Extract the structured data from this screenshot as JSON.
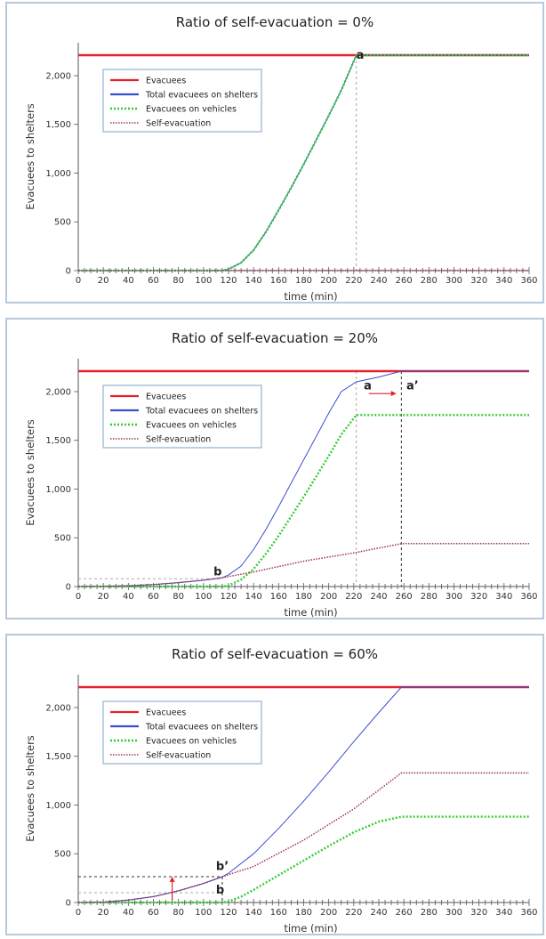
{
  "chart_data": [
    {
      "type": "line",
      "title": "Ratio of self-evacuation = 0%",
      "xlabel": "time (min)",
      "ylabel": "Evacuees to shelters",
      "xlim": [
        0,
        360
      ],
      "ylim": [
        0,
        2200
      ],
      "xticks": [
        "0",
        "20",
        "40",
        "60",
        "80",
        "100",
        "120",
        "140",
        "160",
        "180",
        "200",
        "220",
        "240",
        "260",
        "280",
        "300",
        "320",
        "340",
        "360"
      ],
      "yticks": [
        "0",
        "500",
        "1,000",
        "1,500",
        "2,000"
      ],
      "legend": "top-left",
      "grid": false,
      "series": [
        {
          "name": "Evacuees",
          "color": "#e8202a",
          "style": "solid",
          "x": [
            0,
            360
          ],
          "y": [
            2210,
            2210
          ]
        },
        {
          "name": "Total evacuees on shelters",
          "color": "#3a4fd0",
          "style": "solid",
          "x": [
            0,
            115,
            120,
            130,
            140,
            150,
            160,
            170,
            180,
            190,
            200,
            210,
            222,
            360
          ],
          "y": [
            0,
            0,
            15,
            80,
            210,
            400,
            620,
            850,
            1090,
            1340,
            1590,
            1850,
            2210,
            2210
          ]
        },
        {
          "name": "Evacuees on vehicles",
          "color": "#33cc33",
          "style": "dotted",
          "x": [
            0,
            115,
            120,
            130,
            140,
            150,
            160,
            170,
            180,
            190,
            200,
            210,
            222,
            360
          ],
          "y": [
            0,
            0,
            15,
            80,
            210,
            400,
            620,
            850,
            1090,
            1340,
            1590,
            1850,
            2210,
            2210
          ]
        },
        {
          "name": "Self-evacuation",
          "color": "#9a3355",
          "style": "dotted",
          "x": [
            0,
            360
          ],
          "y": [
            0,
            0
          ]
        }
      ],
      "annotations": [
        {
          "text": "a",
          "x": 222,
          "y": 2210
        }
      ]
    },
    {
      "type": "line",
      "title": "Ratio of self-evacuation = 20%",
      "xlabel": "time (min)",
      "ylabel": "Evacuees to shelters",
      "xlim": [
        0,
        360
      ],
      "ylim": [
        0,
        2200
      ],
      "xticks": [
        "0",
        "20",
        "40",
        "60",
        "80",
        "100",
        "120",
        "140",
        "160",
        "180",
        "200",
        "220",
        "240",
        "260",
        "280",
        "300",
        "320",
        "340",
        "360"
      ],
      "yticks": [
        "0",
        "500",
        "1,000",
        "1,500",
        "2,000"
      ],
      "legend": "top-left",
      "grid": false,
      "series": [
        {
          "name": "Evacuees",
          "color": "#e8202a",
          "style": "solid",
          "x": [
            0,
            360
          ],
          "y": [
            2210,
            2210
          ]
        },
        {
          "name": "Total evacuees on shelters",
          "color": "#3a4fd0",
          "style": "solid",
          "x": [
            0,
            20,
            40,
            60,
            80,
            100,
            115,
            120,
            130,
            140,
            150,
            160,
            170,
            180,
            190,
            200,
            210,
            222,
            240,
            258,
            360
          ],
          "y": [
            0,
            2,
            8,
            20,
            40,
            65,
            90,
            120,
            210,
            380,
            590,
            820,
            1060,
            1300,
            1540,
            1780,
            2000,
            2100,
            2150,
            2210,
            2210
          ]
        },
        {
          "name": "Evacuees on vehicles",
          "color": "#33cc33",
          "style": "dotted",
          "x": [
            0,
            115,
            120,
            130,
            140,
            150,
            160,
            170,
            180,
            190,
            200,
            210,
            222,
            360
          ],
          "y": [
            0,
            0,
            10,
            70,
            180,
            340,
            520,
            720,
            920,
            1130,
            1340,
            1560,
            1760,
            1760
          ]
        },
        {
          "name": "Self-evacuation",
          "color": "#9a3355",
          "style": "dotted",
          "x": [
            0,
            20,
            40,
            60,
            80,
            100,
            115,
            140,
            180,
            222,
            258,
            360
          ],
          "y": [
            0,
            2,
            8,
            20,
            40,
            65,
            90,
            150,
            260,
            350,
            440,
            440
          ]
        }
      ],
      "annotations": [
        {
          "text": "a",
          "x": 228,
          "y": 2060
        },
        {
          "text": "a’",
          "x": 262,
          "y": 2060
        },
        {
          "text": "b",
          "x": 108,
          "y": 150
        }
      ]
    },
    {
      "type": "line",
      "title": "Ratio of self-evacuation = 60%",
      "xlabel": "time (min)",
      "ylabel": "Evacuees to shelters",
      "xlim": [
        0,
        360
      ],
      "ylim": [
        0,
        2200
      ],
      "xticks": [
        "0",
        "20",
        "40",
        "60",
        "80",
        "100",
        "120",
        "140",
        "160",
        "180",
        "200",
        "220",
        "240",
        "260",
        "280",
        "300",
        "320",
        "340",
        "360"
      ],
      "yticks": [
        "0",
        "500",
        "1,000",
        "1,500",
        "2,000"
      ],
      "legend": "top-left",
      "grid": false,
      "series": [
        {
          "name": "Evacuees",
          "color": "#e8202a",
          "style": "solid",
          "x": [
            0,
            360
          ],
          "y": [
            2210,
            2210
          ]
        },
        {
          "name": "Total evacuees on shelters",
          "color": "#3a4fd0",
          "style": "solid",
          "x": [
            0,
            20,
            40,
            60,
            80,
            100,
            115,
            120,
            140,
            160,
            180,
            200,
            220,
            240,
            258,
            360
          ],
          "y": [
            0,
            5,
            25,
            60,
            120,
            195,
            265,
            300,
            500,
            760,
            1040,
            1340,
            1650,
            1950,
            2210,
            2210
          ]
        },
        {
          "name": "Evacuees on vehicles",
          "color": "#33cc33",
          "style": "dotted",
          "x": [
            0,
            115,
            120,
            130,
            140,
            160,
            180,
            200,
            220,
            240,
            258,
            360
          ],
          "y": [
            0,
            0,
            10,
            60,
            130,
            280,
            430,
            580,
            720,
            830,
            880,
            880
          ]
        },
        {
          "name": "Self-evacuation",
          "color": "#9a3355",
          "style": "dotted",
          "x": [
            0,
            20,
            40,
            60,
            80,
            100,
            115,
            140,
            180,
            220,
            258,
            360
          ],
          "y": [
            0,
            5,
            25,
            60,
            120,
            195,
            265,
            370,
            640,
            960,
            1330,
            1330
          ]
        }
      ],
      "annotations": [
        {
          "text": "b’",
          "x": 110,
          "y": 370
        },
        {
          "text": "b",
          "x": 110,
          "y": 130
        }
      ]
    }
  ]
}
